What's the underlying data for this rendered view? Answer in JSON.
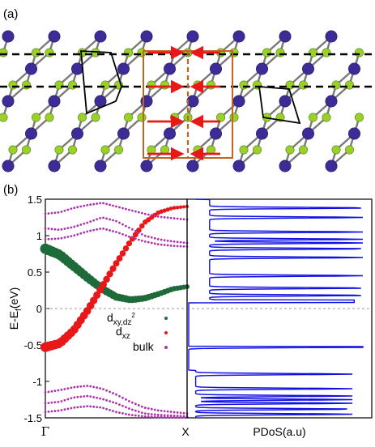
{
  "panel_a": {
    "label": "(a)",
    "colors": {
      "large_atom": "#3d2b96",
      "small_atom": "#9ad02a",
      "defect_atom": "#e02020",
      "bond": "#7a7a7a",
      "arrow": "#e81818",
      "cell": "#c0641e"
    }
  },
  "panel_b": {
    "label": "(b)"
  },
  "chart_data": [
    {
      "type": "scatter",
      "title": "",
      "xlabel": "",
      "ylabel": "E-E",
      "ylabel_sub": "f",
      "ylabel_unit": "(eV)",
      "ylim": [
        -1.5,
        1.5
      ],
      "yticks": [
        "1.5",
        "1",
        "0.5",
        "0",
        "-0.5",
        "-1",
        "-1.5"
      ],
      "ytick_values": [
        1.5,
        1.0,
        0.5,
        0,
        -0.5,
        -1.0,
        -1.5
      ],
      "xticks": [
        "Γ",
        "X"
      ],
      "fermi_level": 0,
      "legend_position": "lower-right",
      "legend": [
        {
          "key": "dxy",
          "text": "d",
          "sub": "xy,dz",
          "sup": "2",
          "color": "#1e6b3a"
        },
        {
          "key": "dxz",
          "text": "d",
          "sub": "xz",
          "sup": "",
          "color": "#e81818"
        },
        {
          "key": "bulk",
          "text": "bulk",
          "sub": "",
          "sup": "",
          "color": "#b030b0"
        }
      ],
      "series": [
        {
          "key": "dxy",
          "x": [
            0.0,
            0.1,
            0.2,
            0.3,
            0.4,
            0.5,
            0.6,
            0.7,
            0.8,
            0.9,
            1.0
          ],
          "y": [
            0.82,
            0.74,
            0.58,
            0.42,
            0.27,
            0.16,
            0.12,
            0.14,
            0.2,
            0.27,
            0.3
          ]
        },
        {
          "key": "dxz",
          "x": [
            0.0,
            0.1,
            0.2,
            0.3,
            0.4,
            0.5,
            0.6,
            0.7,
            0.8,
            0.9,
            1.0
          ],
          "y": [
            -0.53,
            -0.48,
            -0.3,
            -0.02,
            0.3,
            0.62,
            0.92,
            1.18,
            1.32,
            1.38,
            1.4
          ]
        },
        {
          "key": "bulk_top_1",
          "x": [
            0.0,
            0.1,
            0.2,
            0.3,
            0.4,
            0.5,
            0.6,
            0.7,
            0.8,
            0.9,
            1.0
          ],
          "y": [
            1.1,
            1.08,
            1.12,
            1.18,
            1.25,
            1.2,
            1.1,
            1.0,
            0.95,
            0.92,
            0.9
          ]
        },
        {
          "key": "bulk_top_2",
          "x": [
            0.0,
            0.1,
            0.2,
            0.3,
            0.4,
            0.5,
            0.6,
            0.7,
            0.8,
            0.9,
            1.0
          ],
          "y": [
            0.95,
            0.96,
            1.0,
            1.06,
            1.1,
            1.05,
            0.98,
            0.92,
            0.88,
            0.86,
            0.85
          ]
        },
        {
          "key": "bulk_top_3",
          "x": [
            0.0,
            0.1,
            0.2,
            0.3,
            0.4,
            0.5,
            0.6,
            0.7,
            0.8,
            0.9,
            1.0
          ],
          "y": [
            1.3,
            1.32,
            1.38,
            1.42,
            1.45,
            1.4,
            1.35,
            1.3,
            1.26,
            1.24,
            1.22
          ]
        },
        {
          "key": "bulk_bot_1",
          "x": [
            0.0,
            0.1,
            0.2,
            0.3,
            0.4,
            0.5,
            0.6,
            0.7,
            0.8,
            0.9,
            1.0
          ],
          "y": [
            -1.15,
            -1.12,
            -1.08,
            -1.06,
            -1.1,
            -1.18,
            -1.28,
            -1.36,
            -1.4,
            -1.42,
            -1.44
          ]
        },
        {
          "key": "bulk_bot_2",
          "x": [
            0.0,
            0.1,
            0.2,
            0.3,
            0.4,
            0.5,
            0.6,
            0.7,
            0.8,
            0.9,
            1.0
          ],
          "y": [
            -1.3,
            -1.28,
            -1.22,
            -1.2,
            -1.24,
            -1.3,
            -1.38,
            -1.44,
            -1.46,
            -1.47,
            -1.48
          ]
        },
        {
          "key": "bulk_bot_3",
          "x": [
            0.0,
            0.1,
            0.2,
            0.3,
            0.4,
            0.5,
            0.6,
            0.7,
            0.8,
            0.9,
            1.0
          ],
          "y": [
            -1.42,
            -1.4,
            -1.36,
            -1.34,
            -1.36,
            -1.42,
            -1.46,
            -1.48,
            -1.49,
            -1.49,
            -1.49
          ]
        }
      ]
    },
    {
      "type": "line",
      "xlabel": "PDoS(a.u)",
      "ylim": [
        -1.5,
        1.5
      ],
      "peaks_eV": [
        1.38,
        1.25,
        1.05,
        0.95,
        0.9,
        0.82,
        0.7,
        0.45,
        0.28,
        0.18,
        0.1,
        -0.53,
        -0.9,
        -1.1,
        -1.2,
        -1.25,
        -1.3,
        -1.38,
        -1.45
      ],
      "color": "#1010e0"
    }
  ]
}
